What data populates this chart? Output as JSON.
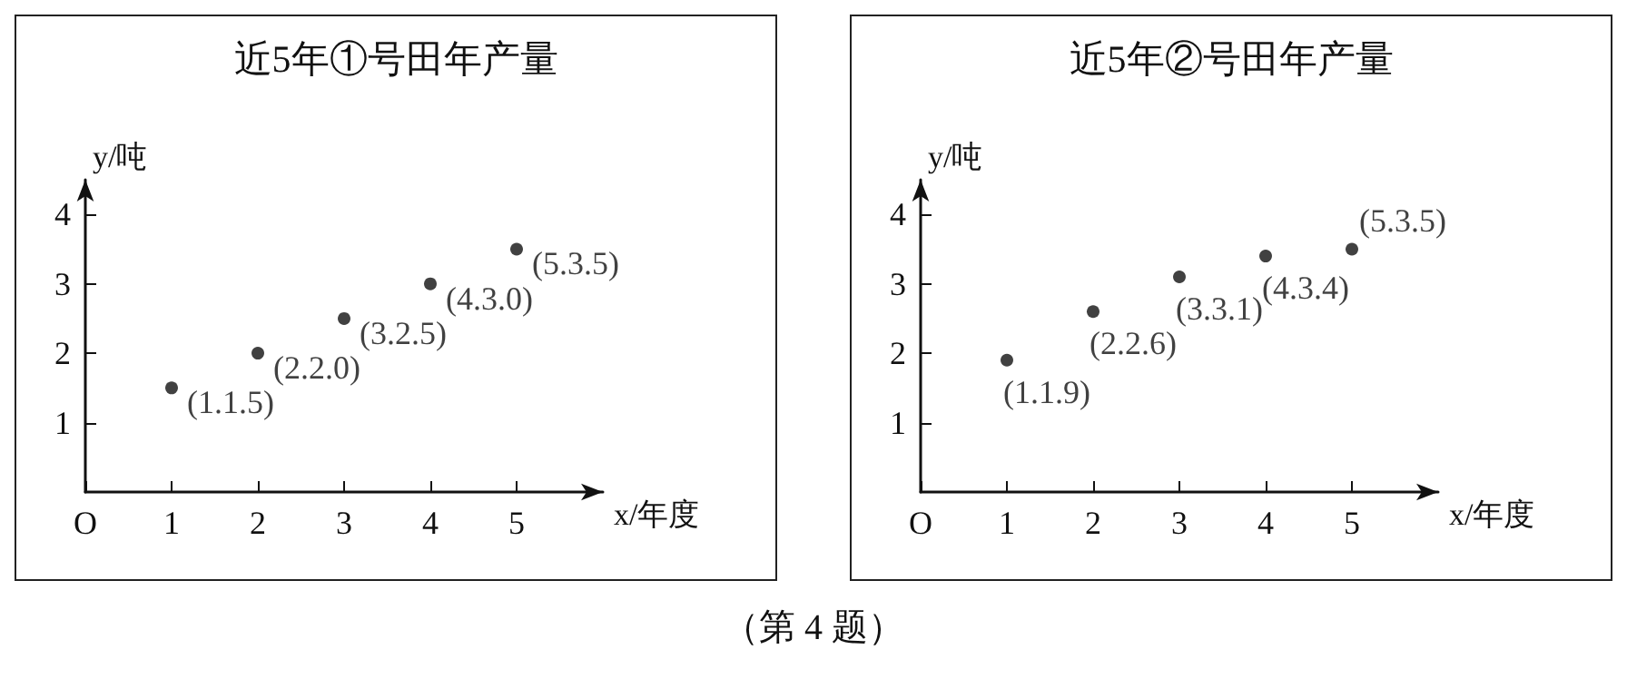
{
  "chart_data": [
    {
      "type": "scatter",
      "title": "近5年①号田年产量",
      "xlabel": "x/年度",
      "ylabel": "y/吨",
      "x": [
        1,
        2,
        3,
        4,
        5
      ],
      "series": [
        {
          "color": "#111111",
          "values": [
            1.5,
            2.0,
            2.5,
            3.0,
            3.5
          ],
          "value_labels": [
            "(1.1.5)",
            "(2.2.0)",
            "(3.2.5)",
            "(4.3.0)",
            "(5.3.5)"
          ]
        }
      ],
      "xlim": [
        0,
        6
      ],
      "ylim": [
        0,
        4.5
      ],
      "xticks": [
        {
          "value": 0,
          "label": "O"
        },
        1,
        2,
        3,
        4,
        5
      ],
      "yticks": [
        1,
        2,
        3,
        4
      ],
      "grid": false,
      "marker": "circle",
      "annotations": [
        "（第 4 题）"
      ]
    },
    {
      "type": "scatter",
      "title": "近5年②号田年产量",
      "xlabel": "x/年度",
      "ylabel": "y/吨",
      "x": [
        1,
        2,
        3,
        4,
        5
      ],
      "series": [
        {
          "color": "#111111",
          "values": [
            1.9,
            2.6,
            3.1,
            3.4,
            3.5
          ],
          "value_labels": [
            "(1.1.9)",
            "(2.2.6)",
            "(3.3.1)",
            "(4.3.4)",
            "(5.3.5)"
          ]
        }
      ],
      "xlim": [
        0,
        6
      ],
      "ylim": [
        0,
        4.5
      ],
      "xticks": [
        {
          "value": 0,
          "label": "O"
        },
        1,
        2,
        3,
        4,
        5
      ],
      "yticks": [
        1,
        2,
        3,
        4
      ],
      "grid": false,
      "marker": "circle"
    }
  ]
}
